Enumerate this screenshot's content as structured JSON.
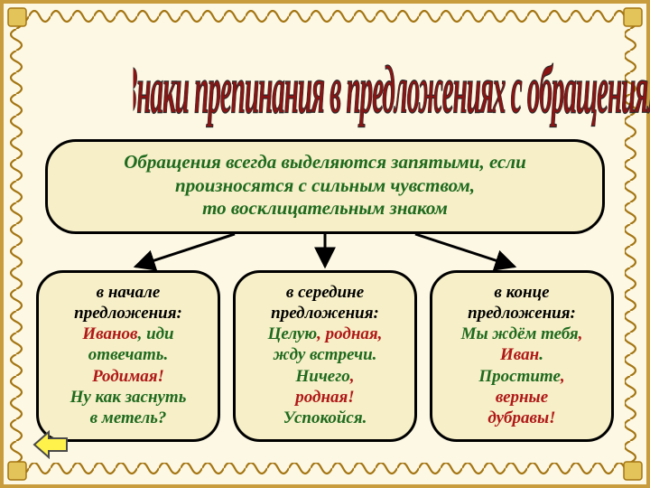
{
  "colors": {
    "frame": "#c89b3c",
    "frame_dark": "#a47512",
    "bg": "#fdf8e4",
    "box_bg": "#f6efc7",
    "box_border": "#000000",
    "title_fill": "#8a1414",
    "title_stroke": "#2a2a2a",
    "rule_text": "#1e6a1e",
    "black": "#000000",
    "red": "#b01818",
    "green": "#1e6a1e",
    "arrow": "#000000",
    "btn_fill": "#fff24a",
    "btn_stroke": "#4a4a4a"
  },
  "title": {
    "line1": "Знаки препинания",
    "line2": "в предложениях с обращениями"
  },
  "rule": {
    "l1": "Обращения всегда выделяются запятыми, если",
    "l2": "произносятся с сильным чувством,",
    "l3": "то восклицательным знаком"
  },
  "cols": [
    {
      "head1": "в начале",
      "head2": "предложения:",
      "lines": [
        [
          {
            "t": "Иванов",
            "c": "red"
          },
          {
            "t": ", ",
            "c": "green"
          },
          {
            "t": "иди",
            "c": "green"
          }
        ],
        [
          {
            "t": "отвечать.",
            "c": "green"
          }
        ],
        [
          {
            "t": "Родимая!",
            "c": "red"
          }
        ],
        [
          {
            "t": "Ну как заснуть",
            "c": "green"
          }
        ],
        [
          {
            "t": "в метель?",
            "c": "green"
          }
        ]
      ]
    },
    {
      "head1": "в середине",
      "head2": "предложения:",
      "lines": [
        [
          {
            "t": "Целую",
            "c": "green"
          },
          {
            "t": ", ",
            "c": "red"
          },
          {
            "t": "родная",
            "c": "red"
          },
          {
            "t": ",",
            "c": "red"
          }
        ],
        [
          {
            "t": "жду встречи.",
            "c": "green"
          }
        ],
        [
          {
            "t": "Ничего",
            "c": "green"
          },
          {
            "t": ",",
            "c": "red"
          }
        ],
        [
          {
            "t": "родная!",
            "c": "red"
          }
        ],
        [
          {
            "t": "Успокойся.",
            "c": "green"
          }
        ]
      ]
    },
    {
      "head1": "в конце",
      "head2": "предложения:",
      "lines": [
        [
          {
            "t": "Мы ждём тебя",
            "c": "green"
          },
          {
            "t": ",",
            "c": "red"
          }
        ],
        [
          {
            "t": "Иван",
            "c": "red"
          },
          {
            "t": ".",
            "c": "green"
          }
        ],
        [
          {
            "t": "Простите",
            "c": "green"
          },
          {
            "t": ",",
            "c": "red"
          }
        ],
        [
          {
            "t": "верные",
            "c": "red"
          }
        ],
        [
          {
            "t": "дубравы!",
            "c": "red"
          }
        ]
      ]
    }
  ]
}
